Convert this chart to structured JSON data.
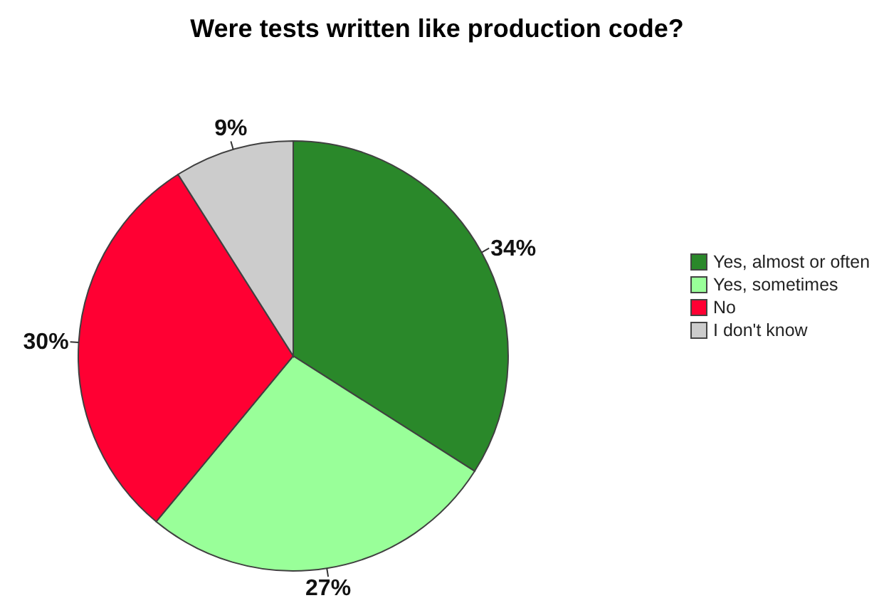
{
  "chart_data": {
    "type": "pie",
    "title": "Were tests written like production code?",
    "categories": [
      "Yes, almost or often",
      "Yes, sometimes",
      "No",
      "I don't know"
    ],
    "values": [
      34,
      27,
      30,
      9
    ],
    "value_labels": [
      "34%",
      "27%",
      "30%",
      "9%"
    ],
    "colors": [
      "#2a882a",
      "#99ff99",
      "#ff0033",
      "#cccccc"
    ],
    "legend": "right"
  }
}
